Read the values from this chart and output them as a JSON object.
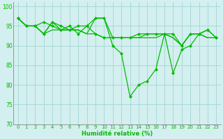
{
  "title": "",
  "xlabel": "Humidité relative (%)",
  "ylabel": "",
  "xlim": [
    -0.5,
    23.5
  ],
  "ylim": [
    70,
    101
  ],
  "yticks": [
    70,
    75,
    80,
    85,
    90,
    95,
    100
  ],
  "xticks": [
    0,
    1,
    2,
    3,
    4,
    5,
    6,
    7,
    8,
    9,
    10,
    11,
    12,
    13,
    14,
    15,
    16,
    17,
    18,
    19,
    20,
    21,
    22,
    23
  ],
  "bg_color": "#d4efef",
  "grid_color": "#a8d8d8",
  "line_color": "#00bb00",
  "lines": [
    {
      "y": [
        97,
        95,
        95,
        93,
        96,
        94,
        94,
        94,
        93,
        97,
        97,
        92,
        92,
        92,
        92,
        93,
        93,
        93,
        92,
        90,
        93,
        93,
        92,
        92
      ],
      "markers": false
    },
    {
      "y": [
        97,
        95,
        95,
        93,
        94,
        94,
        94,
        94,
        93,
        93,
        92,
        92,
        92,
        92,
        92,
        92,
        92,
        93,
        92,
        90,
        93,
        93,
        92,
        92
      ],
      "markers": false
    },
    {
      "y": [
        97,
        95,
        95,
        96,
        95,
        94,
        95,
        93,
        95,
        93,
        92,
        92,
        92,
        92,
        93,
        93,
        93,
        93,
        93,
        90,
        93,
        93,
        94,
        92
      ],
      "markers": true
    },
    {
      "y": [
        97,
        95,
        95,
        93,
        96,
        95,
        94,
        95,
        95,
        97,
        97,
        90,
        88,
        77,
        80,
        81,
        84,
        93,
        83,
        89,
        90,
        93,
        94,
        92
      ],
      "markers": true
    }
  ]
}
